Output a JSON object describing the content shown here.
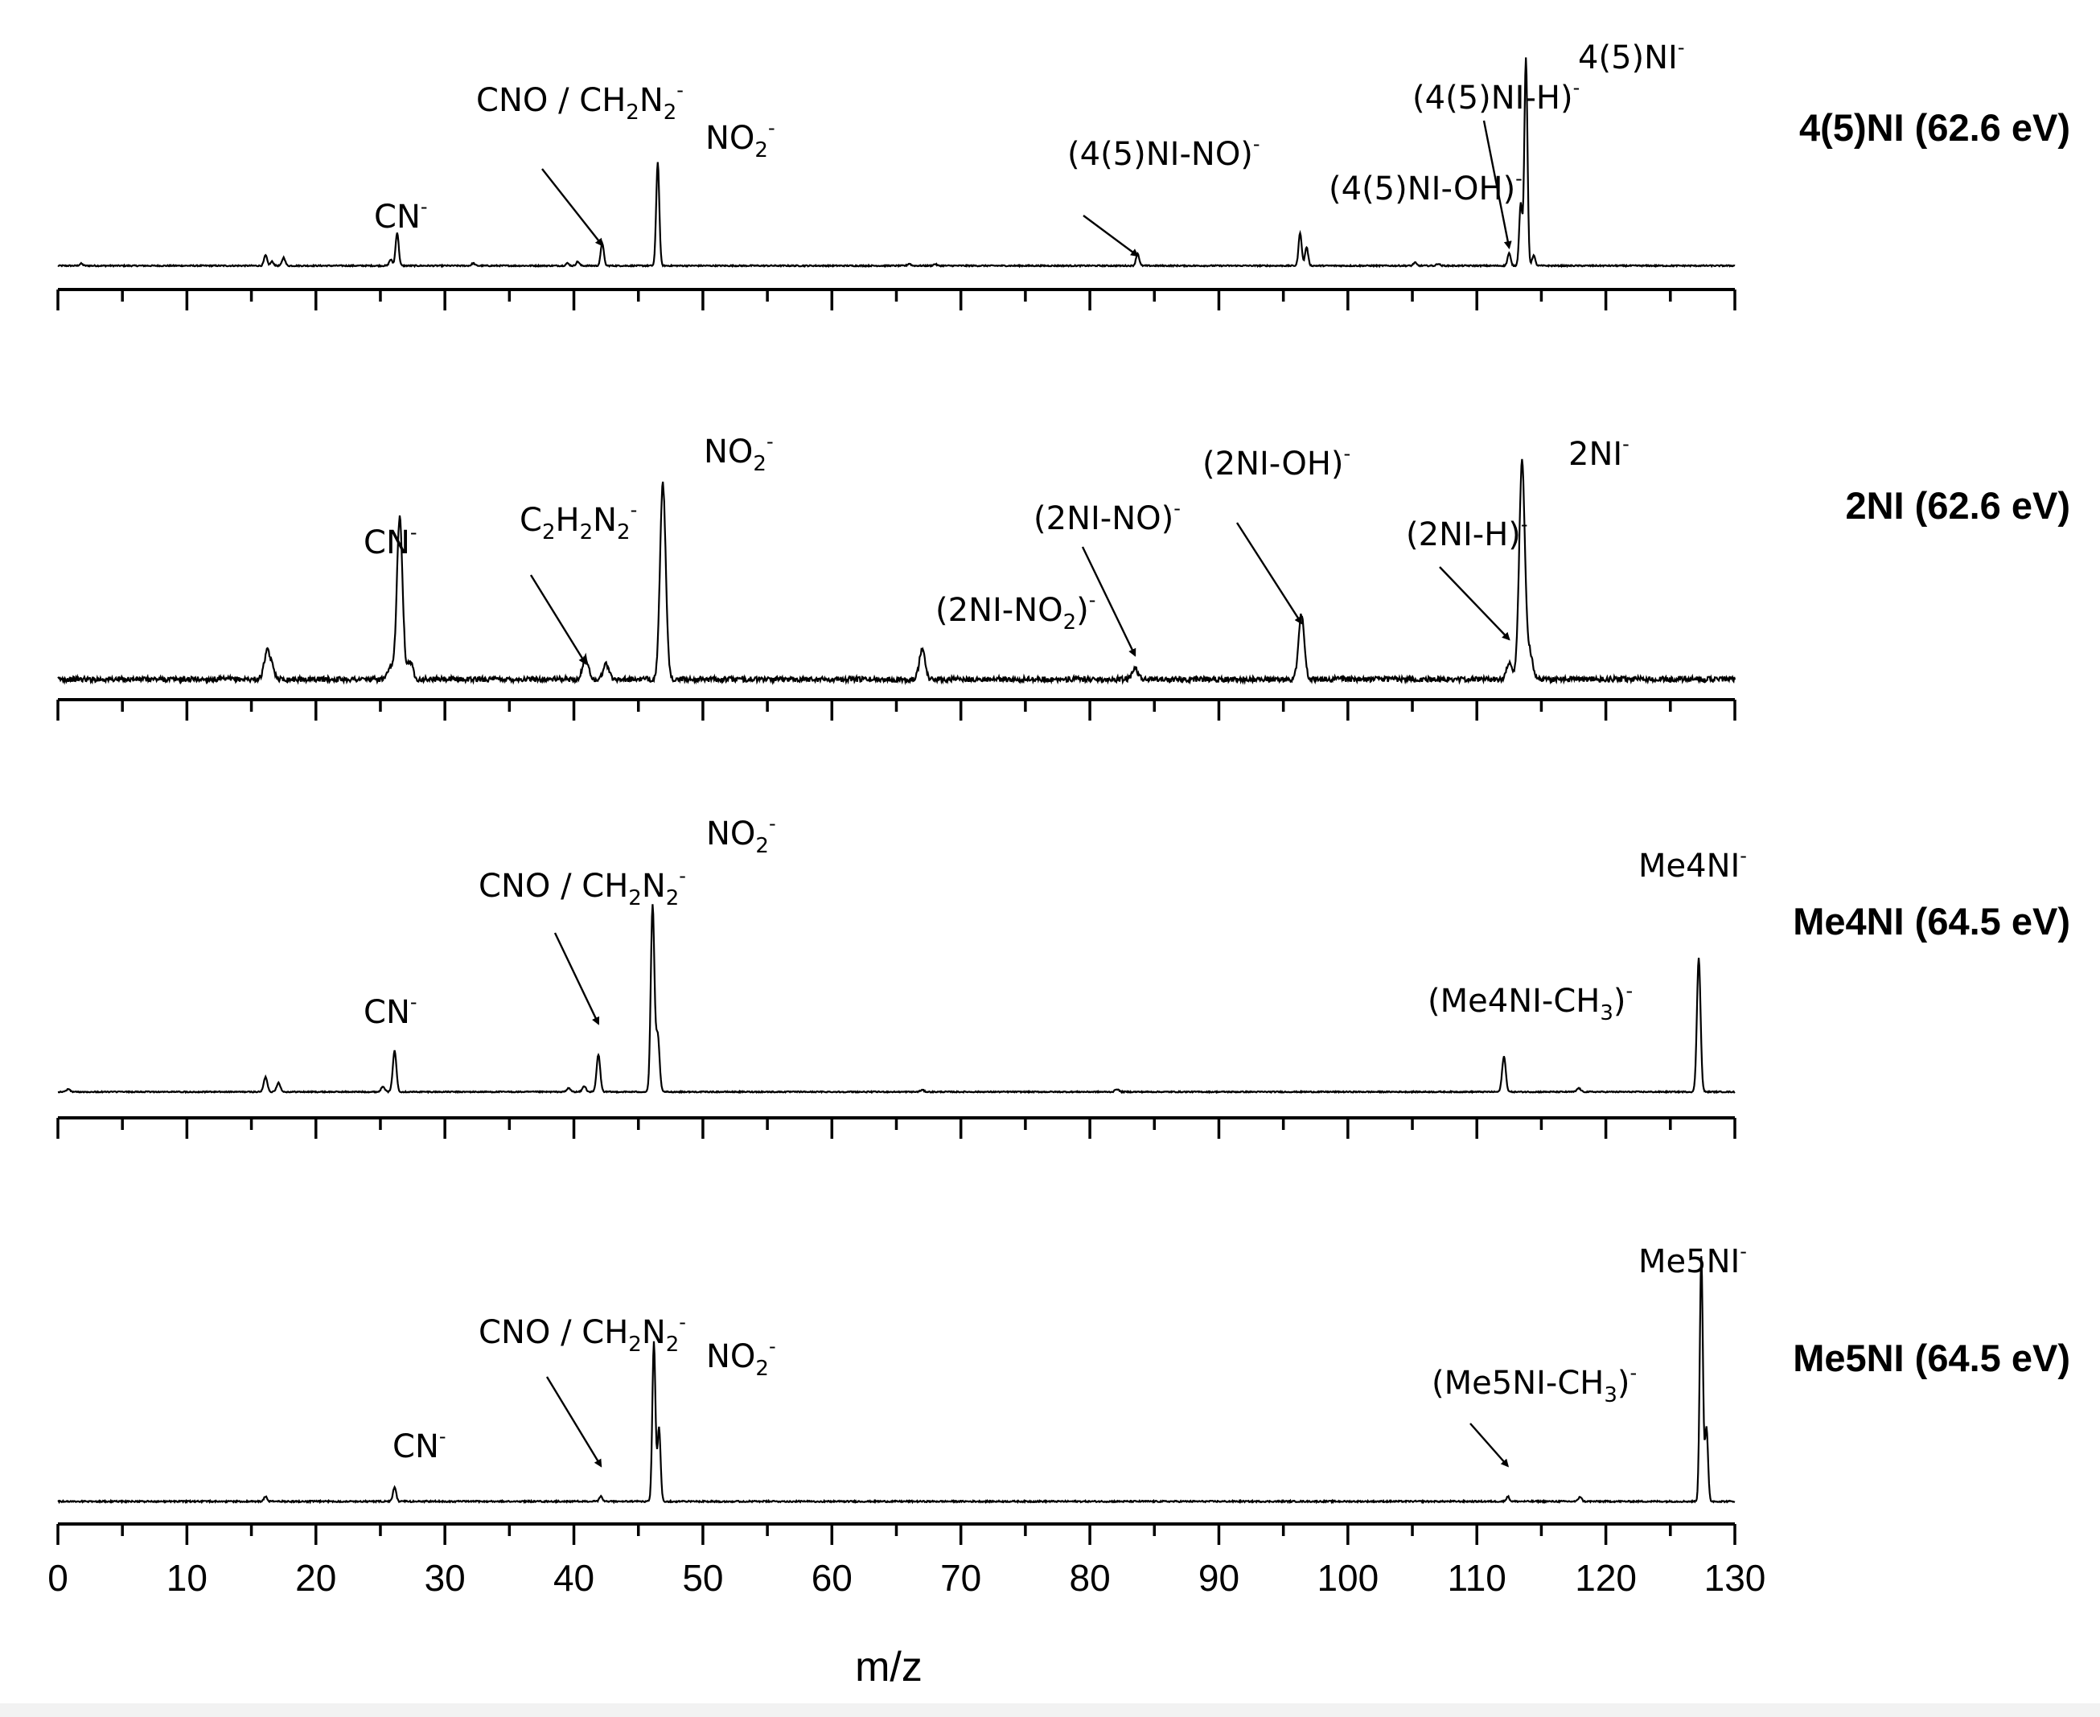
{
  "chart_data": {
    "type": "line",
    "xlabel": "m/z",
    "xlim": [
      0,
      130
    ],
    "x_ticks": [
      0,
      10,
      20,
      30,
      40,
      50,
      60,
      70,
      80,
      90,
      100,
      110,
      120,
      130
    ],
    "colors": {
      "line": "#000000",
      "background": "#ffffff",
      "strip": "#f2f2f2"
    },
    "panels": [
      {
        "label": "4(5)NI (62.6 eV)",
        "peaks": [
          [
            1.8,
            0.01
          ],
          [
            16.1,
            0.05
          ],
          [
            16.6,
            0.02
          ],
          [
            17.5,
            0.04
          ],
          [
            25.8,
            0.03
          ],
          [
            26.3,
            0.16
          ],
          [
            32.2,
            0.012
          ],
          [
            39.5,
            0.012
          ],
          [
            40.3,
            0.02
          ],
          [
            42.2,
            0.11
          ],
          [
            46.5,
            0.5
          ],
          [
            66,
            0.01
          ],
          [
            68,
            0.008
          ],
          [
            83.7,
            0.06
          ],
          [
            96.3,
            0.16
          ],
          [
            96.8,
            0.09
          ],
          [
            105.2,
            0.015
          ],
          [
            107,
            0.01
          ],
          [
            112.5,
            0.06
          ],
          [
            113.4,
            0.3
          ],
          [
            113.8,
            1.0
          ],
          [
            114.4,
            0.05
          ]
        ],
        "baseline": 0.01,
        "noise": 0.003,
        "width": 0.12,
        "annotations": [
          {
            "base": "CN",
            "x": 26.3
          },
          {
            "base": "CNO / CH2N2",
            "x": 42.2
          },
          {
            "base": "NO2",
            "x": 46.5
          },
          {
            "base": "(4(5)NI-NO)",
            "x": 83.7
          },
          {
            "base": "(4(5)NI-OH)",
            "x": 96.3
          },
          {
            "base": "(4(5)NI-H)",
            "x": 112.5
          },
          {
            "base": "4(5)NI",
            "x": 113.8
          }
        ]
      },
      {
        "label": "2NI (62.6 eV)",
        "peaks": [
          [
            16.2,
            0.12
          ],
          [
            16.6,
            0.05
          ],
          [
            25.8,
            0.05
          ],
          [
            26.5,
            0.75
          ],
          [
            27.3,
            0.08
          ],
          [
            40.9,
            0.1
          ],
          [
            42.5,
            0.07
          ],
          [
            46.9,
            0.9
          ],
          [
            67,
            0.14
          ],
          [
            83.5,
            0.05
          ],
          [
            96.4,
            0.3
          ],
          [
            112.5,
            0.08
          ],
          [
            113.5,
            1.0
          ],
          [
            114.1,
            0.12
          ]
        ],
        "baseline": 0.02,
        "noise": 0.012,
        "width": 0.22,
        "annotations": [
          {
            "base": "CN",
            "x": 26.5
          },
          {
            "base": "C2H2N2",
            "x": 40.9
          },
          {
            "base": "NO2",
            "x": 46.9
          },
          {
            "base": "(2NI-NO2)",
            "x": 67
          },
          {
            "base": "(2NI-NO)",
            "x": 83.5
          },
          {
            "base": "(2NI-OH)",
            "x": 96.4
          },
          {
            "base": "(2NI-H)",
            "x": 112.5
          },
          {
            "base": "2NI",
            "x": 113.5
          }
        ]
      },
      {
        "label": "Me4NI (64.5 eV)",
        "peaks": [
          [
            0.8,
            0.015
          ],
          [
            16.1,
            0.08
          ],
          [
            17.1,
            0.05
          ],
          [
            25.2,
            0.03
          ],
          [
            26.1,
            0.22
          ],
          [
            39.6,
            0.02
          ],
          [
            40.8,
            0.03
          ],
          [
            41.9,
            0.2
          ],
          [
            46.1,
            1.0
          ],
          [
            46.5,
            0.3
          ],
          [
            67,
            0.01
          ],
          [
            82.1,
            0.015
          ],
          [
            112.1,
            0.19
          ],
          [
            117.9,
            0.02
          ],
          [
            127.2,
            0.72
          ]
        ],
        "baseline": 0.01,
        "noise": 0.003,
        "width": 0.14,
        "annotations": [
          {
            "base": "CN",
            "x": 26.1
          },
          {
            "base": "CNO / CH2N2",
            "x": 41.9
          },
          {
            "base": "NO2",
            "x": 46.1
          },
          {
            "base": "(Me4NI-CH3)",
            "x": 112.1
          },
          {
            "base": "Me4NI",
            "x": 127.2
          }
        ]
      },
      {
        "label": "Me5NI (64.5 eV)",
        "peaks": [
          [
            16.1,
            0.02
          ],
          [
            26.1,
            0.06
          ],
          [
            42.1,
            0.02
          ],
          [
            46.2,
            0.65
          ],
          [
            46.6,
            0.3
          ],
          [
            112.4,
            0.02
          ],
          [
            118,
            0.02
          ],
          [
            127.4,
            1.0
          ],
          [
            127.8,
            0.3
          ]
        ],
        "baseline": 0.01,
        "noise": 0.003,
        "width": 0.12,
        "annotations": [
          {
            "base": "CN",
            "x": 26.1
          },
          {
            "base": "CNO / CH2N2",
            "x": 42.1
          },
          {
            "base": "NO2",
            "x": 46.2
          },
          {
            "base": "(Me5NI-CH3)",
            "x": 112.4
          },
          {
            "base": "Me5NI",
            "x": 127.4
          }
        ]
      }
    ]
  }
}
